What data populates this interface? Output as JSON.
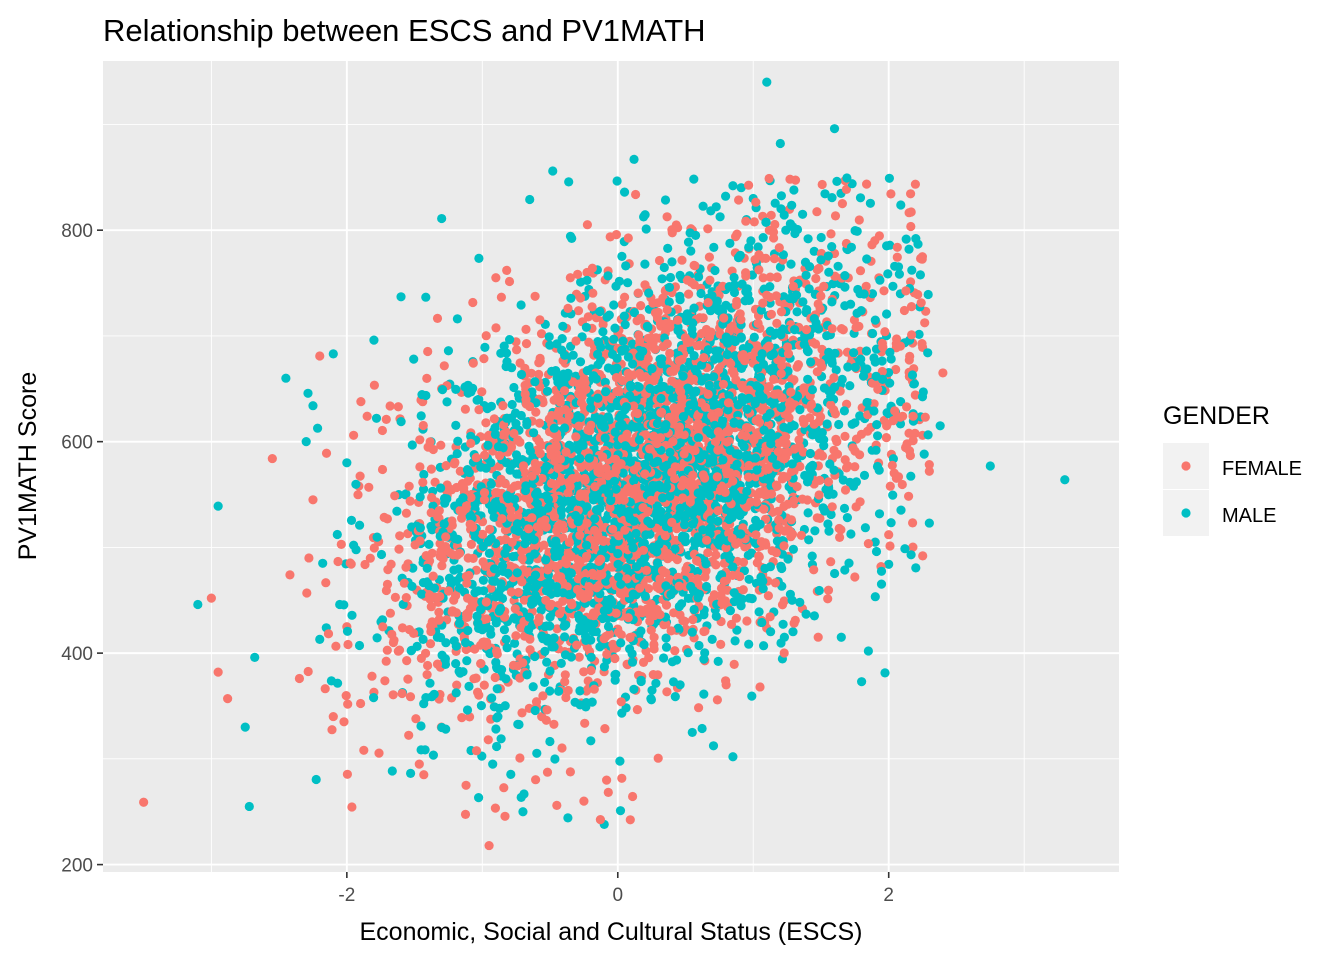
{
  "chart_data": {
    "type": "scatter",
    "title": "Relationship between ESCS and PV1MATH",
    "xlabel": "Economic, Social and Cultural Status (ESCS)",
    "ylabel": "PV1MATH Score",
    "xlim": [
      -3.8,
      3.7
    ],
    "ylim": [
      193,
      960
    ],
    "x_ticks": [
      -2,
      0,
      2
    ],
    "x_tick_labels": [
      "-2",
      "0",
      "2"
    ],
    "y_ticks": [
      200,
      400,
      600,
      800
    ],
    "y_tick_labels": [
      "200",
      "400",
      "600",
      "800"
    ],
    "grid": true,
    "legend": {
      "title": "GENDER",
      "placement": "right",
      "entries": [
        "FEMALE",
        "MALE"
      ]
    },
    "series": [
      {
        "name": "FEMALE",
        "color": "#F8766D",
        "points": [
          [
            -3.5,
            259
          ],
          [
            -2.95,
            382
          ],
          [
            -2.88,
            357
          ],
          [
            -3.0,
            452
          ],
          [
            -2.55,
            584
          ],
          [
            -2.42,
            474
          ],
          [
            -2.35,
            376
          ],
          [
            -2.28,
            490
          ],
          [
            -2.25,
            545
          ],
          [
            -2.2,
            681
          ],
          [
            -2.15,
            589
          ],
          [
            -2.1,
            340
          ],
          [
            -2.0,
            425
          ],
          [
            -1.95,
            606
          ],
          [
            -1.85,
            624
          ],
          [
            -1.8,
            363
          ],
          [
            -1.7,
            465
          ],
          [
            -1.62,
            633
          ],
          [
            -1.55,
            513
          ],
          [
            -1.45,
            395
          ],
          [
            -1.3,
            650
          ],
          [
            -1.12,
            275
          ],
          [
            -0.95,
            218
          ],
          [
            -0.9,
            755
          ],
          [
            -0.82,
            762
          ],
          [
            -0.6,
            354
          ],
          [
            -0.45,
            256
          ],
          [
            -0.35,
            755
          ],
          [
            -0.25,
            260
          ],
          [
            0.55,
            800
          ],
          [
            0.8,
            370
          ],
          [
            1.05,
            368
          ],
          [
            1.45,
            560
          ],
          [
            1.75,
            472
          ],
          [
            2.0,
            512
          ],
          [
            2.02,
            588
          ],
          [
            2.15,
            608
          ],
          [
            2.25,
            606
          ],
          [
            2.3,
            572
          ],
          [
            2.4,
            665
          ],
          [
            1.6,
            778
          ],
          [
            1.3,
            752
          ]
        ]
      },
      {
        "name": "MALE",
        "color": "#00BFC4",
        "points": [
          [
            -3.1,
            446
          ],
          [
            -2.95,
            539
          ],
          [
            -2.75,
            330
          ],
          [
            -2.72,
            255
          ],
          [
            -2.68,
            396
          ],
          [
            -2.45,
            660
          ],
          [
            -2.3,
            600
          ],
          [
            -2.25,
            634
          ],
          [
            -2.2,
            413
          ],
          [
            -2.1,
            683
          ],
          [
            -2.0,
            580
          ],
          [
            -1.95,
            502
          ],
          [
            -1.8,
            696
          ],
          [
            -1.6,
            737
          ],
          [
            -1.3,
            811
          ],
          [
            -1.25,
            686
          ],
          [
            -0.95,
            598
          ],
          [
            -0.7,
            250
          ],
          [
            -0.65,
            829
          ],
          [
            -0.48,
            856
          ],
          [
            -0.1,
            238
          ],
          [
            0.02,
            251
          ],
          [
            0.05,
            836
          ],
          [
            0.12,
            867
          ],
          [
            0.4,
            770
          ],
          [
            0.55,
            325
          ],
          [
            0.85,
            842
          ],
          [
            0.85,
            302
          ],
          [
            1.1,
            940
          ],
          [
            1.2,
            882
          ],
          [
            1.3,
            838
          ],
          [
            1.45,
            780
          ],
          [
            1.6,
            896
          ],
          [
            1.65,
            415
          ],
          [
            1.8,
            373
          ],
          [
            1.85,
            402
          ],
          [
            2.0,
            484
          ],
          [
            2.05,
            628
          ],
          [
            2.15,
            782
          ],
          [
            2.2,
            792
          ],
          [
            2.3,
            523
          ],
          [
            2.38,
            615
          ],
          [
            2.75,
            577
          ],
          [
            3.3,
            564
          ],
          [
            1.0,
            830
          ],
          [
            0.95,
            810
          ],
          [
            1.35,
            695
          ]
        ]
      }
    ]
  }
}
